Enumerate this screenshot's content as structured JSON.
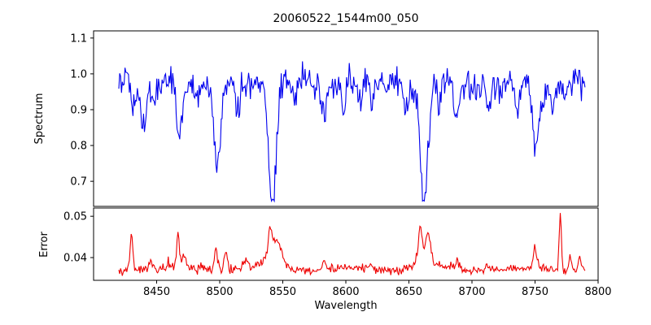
{
  "figure_title": "20060522_1544m00_050",
  "chart_data": [
    {
      "type": "line",
      "name": "spectrum",
      "title": "20060522_1544m00_050",
      "xlabel": "Wavelength",
      "ylabel": "Spectrum",
      "color": "#0000ee",
      "legend": "none",
      "grid": false,
      "xlim": [
        8400,
        8800
      ],
      "ylim": [
        0.63,
        1.12
      ],
      "x_start": 8420,
      "x_end": 8790,
      "x_step": 0.7,
      "baseline": 0.972,
      "noise_amp": 0.028,
      "noise_amp2": 0.02,
      "noise_seed": 42,
      "x_ticks": [
        8450,
        8500,
        8550,
        8600,
        8650,
        8700,
        8750,
        8800
      ],
      "x_tick_labels": [
        "8450",
        "8500",
        "8550",
        "8600",
        "8650",
        "8700",
        "8750",
        "8800"
      ],
      "y_ticks": [
        0.7,
        0.8,
        0.9,
        1.0,
        1.1
      ],
      "y_tick_labels": [
        "0.7",
        "0.8",
        "0.9",
        "1.0",
        "1.1"
      ],
      "absorption_lines": [
        {
          "center": 8433,
          "depth": 0.07,
          "width": 2.5
        },
        {
          "center": 8440,
          "depth": 0.13,
          "width": 3
        },
        {
          "center": 8447,
          "depth": 0.06,
          "width": 2
        },
        {
          "center": 8468,
          "depth": 0.12,
          "width": 3
        },
        {
          "center": 8482,
          "depth": 0.05,
          "width": 2
        },
        {
          "center": 8498,
          "depth": 0.25,
          "width": 3.5
        },
        {
          "center": 8514,
          "depth": 0.09,
          "width": 2.5
        },
        {
          "center": 8542,
          "depth": 0.33,
          "width": 4
        },
        {
          "center": 8559,
          "depth": 0.05,
          "width": 2
        },
        {
          "center": 8583,
          "depth": 0.09,
          "width": 2.5
        },
        {
          "center": 8598,
          "depth": 0.07,
          "width": 2
        },
        {
          "center": 8611,
          "depth": 0.05,
          "width": 2
        },
        {
          "center": 8621,
          "depth": 0.08,
          "width": 2.5
        },
        {
          "center": 8648,
          "depth": 0.06,
          "width": 2
        },
        {
          "center": 8662,
          "depth": 0.36,
          "width": 4
        },
        {
          "center": 8674,
          "depth": 0.07,
          "width": 2
        },
        {
          "center": 8688,
          "depth": 0.11,
          "width": 3
        },
        {
          "center": 8713,
          "depth": 0.07,
          "width": 2.5
        },
        {
          "center": 8736,
          "depth": 0.07,
          "width": 2.5
        },
        {
          "center": 8751,
          "depth": 0.19,
          "width": 3.5
        },
        {
          "center": 8764,
          "depth": 0.06,
          "width": 2
        }
      ]
    },
    {
      "type": "line",
      "name": "error",
      "ylabel": "Error",
      "color": "#ee0000",
      "legend": "none",
      "grid": false,
      "ylim": [
        0.0345,
        0.052
      ],
      "baseline": 0.0372,
      "noise_amp": 0.0007,
      "noise_seed": 7,
      "y_ticks": [
        0.04,
        0.05
      ],
      "y_tick_labels": [
        "0.04",
        "0.05"
      ],
      "peaks": [
        {
          "center": 8430,
          "amp": 0.0088,
          "width": 1.5
        },
        {
          "center": 8445,
          "amp": 0.002,
          "width": 2
        },
        {
          "center": 8467,
          "amp": 0.0078,
          "width": 1.5
        },
        {
          "center": 8472,
          "amp": 0.003,
          "width": 2
        },
        {
          "center": 8497,
          "amp": 0.005,
          "width": 2
        },
        {
          "center": 8505,
          "amp": 0.0045,
          "width": 2
        },
        {
          "center": 8520,
          "amp": 0.002,
          "width": 3
        },
        {
          "center": 8540,
          "amp": 0.007,
          "width": 2.5
        },
        {
          "center": 8546,
          "amp": 0.005,
          "width": 4
        },
        {
          "center": 8543,
          "amp": 0.002,
          "width": 12
        },
        {
          "center": 8583,
          "amp": 0.002,
          "width": 2
        },
        {
          "center": 8620,
          "amp": 0.0015,
          "width": 2
        },
        {
          "center": 8659,
          "amp": 0.008,
          "width": 2
        },
        {
          "center": 8665,
          "amp": 0.006,
          "width": 3
        },
        {
          "center": 8662,
          "amp": 0.002,
          "width": 10
        },
        {
          "center": 8688,
          "amp": 0.002,
          "width": 2
        },
        {
          "center": 8713,
          "amp": 0.0015,
          "width": 2
        },
        {
          "center": 8750,
          "amp": 0.005,
          "width": 2
        },
        {
          "center": 8770,
          "amp": 0.0145,
          "width": 1.2
        },
        {
          "center": 8778,
          "amp": 0.004,
          "width": 1.5
        },
        {
          "center": 8785,
          "amp": 0.003,
          "width": 1.5
        }
      ]
    }
  ]
}
